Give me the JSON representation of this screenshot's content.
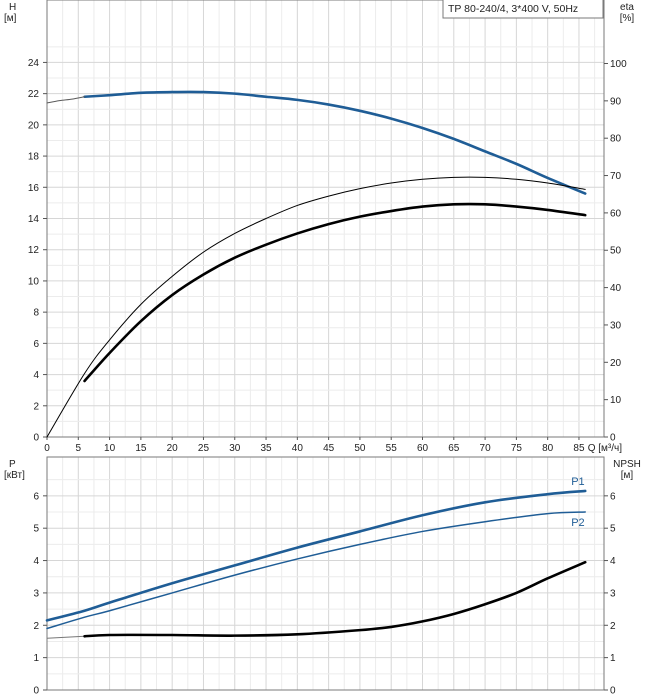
{
  "chart_data": [
    {
      "type": "line",
      "title": "TP 80-240/4, 3*400 V, 50Hz",
      "xlabel": "Q [м³/ч]",
      "ylabel": "H\n[м]",
      "y2label": "eta\n[%]",
      "xlim": [
        0,
        89
      ],
      "ylim": [
        0,
        28
      ],
      "y2lim": [
        0,
        117
      ],
      "x_ticks": [
        0,
        5,
        10,
        15,
        20,
        25,
        30,
        35,
        40,
        45,
        50,
        55,
        60,
        65,
        70,
        75,
        80,
        85
      ],
      "y_ticks": [
        0,
        2,
        4,
        6,
        8,
        10,
        12,
        14,
        16,
        18,
        20,
        22,
        24
      ],
      "y2_ticks": [
        0,
        10,
        20,
        30,
        40,
        50,
        60,
        70,
        80,
        90,
        100
      ],
      "grid": true,
      "series": [
        {
          "axis": "left",
          "style": "thick",
          "color": "#1f5d96",
          "x": [
            6,
            10,
            15,
            20,
            25,
            30,
            35,
            40,
            45,
            50,
            55,
            60,
            65,
            70,
            75,
            80,
            86
          ],
          "y": [
            21.8,
            21.9,
            22.05,
            22.1,
            22.1,
            22.0,
            21.8,
            21.6,
            21.3,
            20.9,
            20.4,
            19.8,
            19.1,
            18.3,
            17.5,
            16.6,
            15.6
          ]
        },
        {
          "axis": "left",
          "style": "thin",
          "color": "#5a5a5a",
          "x": [
            0,
            2,
            4,
            6
          ],
          "y": [
            21.4,
            21.55,
            21.65,
            21.8
          ]
        },
        {
          "axis": "right",
          "style": "thin",
          "color": "#000000",
          "x": [
            0,
            6,
            10,
            15,
            20,
            25,
            30,
            35,
            40,
            45,
            50,
            55,
            60,
            65,
            70,
            75,
            80,
            86
          ],
          "y": [
            0,
            17,
            26,
            35.5,
            43,
            49.5,
            54.5,
            58.5,
            62,
            64.5,
            66.5,
            68,
            69,
            69.5,
            69.5,
            69,
            68,
            66.3
          ]
        },
        {
          "axis": "right",
          "style": "thick",
          "color": "#000000",
          "x": [
            6,
            10,
            15,
            20,
            25,
            30,
            35,
            40,
            45,
            50,
            55,
            60,
            65,
            70,
            75,
            80,
            86
          ],
          "y": [
            15,
            22.5,
            31,
            38,
            43.5,
            48,
            51.5,
            54.5,
            57,
            59,
            60.5,
            61.7,
            62.3,
            62.3,
            61.7,
            60.8,
            59.4
          ]
        }
      ]
    },
    {
      "type": "line",
      "xlabel": "",
      "ylabel": "P\n[кВт]",
      "y2label": "NPSH\n[м]",
      "xlim": [
        0,
        89
      ],
      "ylim": [
        0,
        7.2
      ],
      "y2lim": [
        0,
        7.2
      ],
      "y_ticks": [
        0,
        1,
        2,
        3,
        4,
        5,
        6
      ],
      "y2_ticks": [
        0,
        1,
        2,
        3,
        4,
        5,
        6
      ],
      "grid": true,
      "series": [
        {
          "name": "P1",
          "axis": "left",
          "style": "thick",
          "color": "#1f5d96",
          "x": [
            0,
            6,
            10,
            20,
            30,
            40,
            50,
            60,
            70,
            80,
            86
          ],
          "y": [
            2.15,
            2.45,
            2.7,
            3.3,
            3.85,
            4.4,
            4.9,
            5.4,
            5.8,
            6.05,
            6.15
          ]
        },
        {
          "name": "P2",
          "axis": "left",
          "style": "medium",
          "color": "#1f5d96",
          "x": [
            0,
            6,
            10,
            20,
            30,
            40,
            50,
            60,
            70,
            80,
            86
          ],
          "y": [
            1.9,
            2.25,
            2.45,
            3.0,
            3.55,
            4.05,
            4.5,
            4.9,
            5.2,
            5.45,
            5.5
          ]
        },
        {
          "axis": "right",
          "style": "thin",
          "color": "#777777",
          "x": [
            0,
            6
          ],
          "y": [
            1.6,
            1.66
          ]
        },
        {
          "axis": "right",
          "style": "thick",
          "color": "#000000",
          "x": [
            6,
            10,
            20,
            30,
            40,
            50,
            55,
            60,
            65,
            70,
            75,
            80,
            86
          ],
          "y": [
            1.66,
            1.7,
            1.7,
            1.68,
            1.72,
            1.85,
            1.95,
            2.12,
            2.35,
            2.65,
            3.0,
            3.45,
            3.95
          ]
        }
      ]
    }
  ]
}
